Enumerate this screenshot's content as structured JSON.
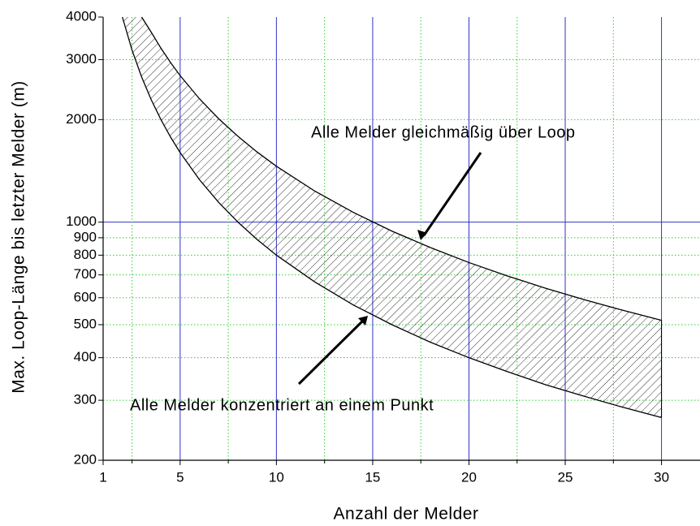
{
  "chart_data": {
    "type": "line",
    "x_label": "Anzahl der Melder",
    "y_label": "Max. Loop-Länge bis letzter Melder (m)",
    "annotations": [
      "Alle Melder gleichmäßig über Loop",
      "Alle Melder konzentriert an einem Punkt"
    ],
    "x": [
      2,
      2.5,
      3,
      3.5,
      4,
      4.5,
      5,
      6,
      7,
      8,
      9,
      10,
      12,
      14,
      16,
      18,
      20,
      22,
      24,
      26,
      28,
      30
    ],
    "series": [
      {
        "name": "Alle Melder gleichmäßig über Loop",
        "color": "#000000",
        "values": [
          null,
          null,
          4000,
          3609,
          3242,
          2942,
          2693,
          2303,
          2012,
          1787,
          1606,
          1459,
          1233,
          1068,
          941,
          842,
          761,
          695,
          639,
          592,
          551,
          515
        ]
      },
      {
        "name": "Alle Melder konzentriert an einem Punkt",
        "color": "#000000",
        "values": [
          4000,
          3200,
          2667,
          2286,
          2000,
          1778,
          1600,
          1333,
          1143,
          1000,
          889,
          800,
          667,
          571,
          500,
          444,
          400,
          364,
          333,
          308,
          286,
          267
        ]
      }
    ],
    "xlim": [
      1,
      32
    ],
    "xticks": [
      1,
      5,
      10,
      15,
      20,
      25,
      30
    ],
    "x_major_grid": [
      5,
      10,
      15,
      20,
      25,
      30
    ],
    "x_minor_grid": [
      2.5,
      7.5,
      12.5,
      17.5,
      22.5,
      27.5
    ],
    "ylim": [
      200,
      4000
    ],
    "log_y": true,
    "yticks": [
      200,
      300,
      400,
      500,
      600,
      700,
      800,
      900,
      1000,
      2000,
      3000,
      4000
    ],
    "y_major_grid": [
      1000
    ],
    "major_grid_color": "#3333cc",
    "minor_grid_color": "#33cc33",
    "fill": "hatched"
  }
}
